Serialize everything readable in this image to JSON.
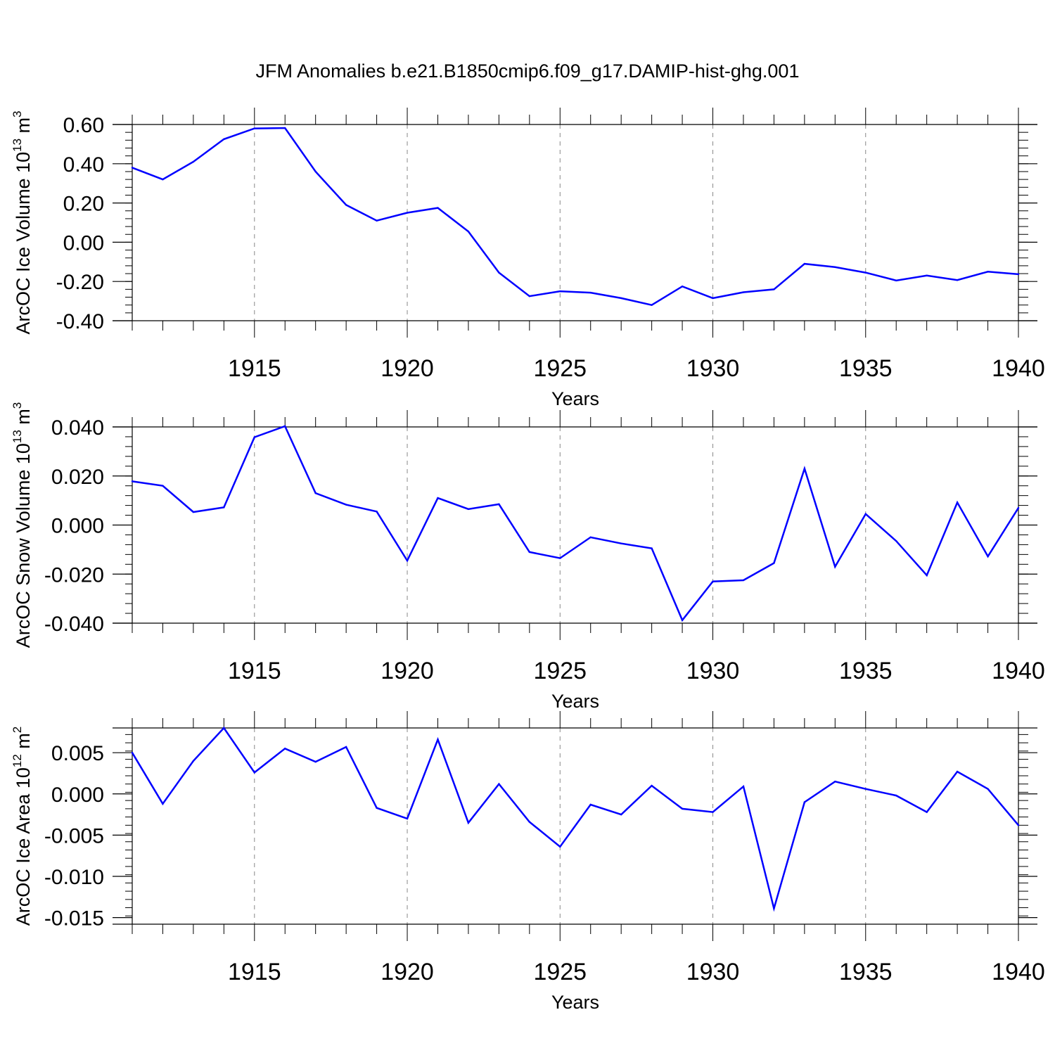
{
  "title": "JFM Anomalies b.e21.B1850cmip6.f09_g17.DAMIP-hist-ghg.001",
  "chart_data": [
    {
      "type": "line",
      "ylabel": "ArcOC Ice Volume 10",
      "ylabel_exp": "13",
      "ylabel_unit": " m",
      "ylabel_unit_exp": "3",
      "xlabel": "Years",
      "xlim": [
        1911,
        1940
      ],
      "ylim": [
        -0.4,
        0.6
      ],
      "yticks": [
        -0.4,
        -0.2,
        0.0,
        0.2,
        0.4,
        0.6
      ],
      "ytick_labels": [
        "-0.40",
        "-0.20",
        "0.00",
        "0.20",
        "0.40",
        "0.60"
      ],
      "xticks": [
        1915,
        1920,
        1925,
        1930,
        1935,
        1940
      ],
      "xtick_labels": [
        "1915",
        "1920",
        "1925",
        "1930",
        "1935",
        "1940"
      ],
      "line_color": "#0000ff",
      "x": [
        1911,
        1912,
        1913,
        1914,
        1915,
        1916,
        1917,
        1918,
        1919,
        1920,
        1921,
        1922,
        1923,
        1924,
        1925,
        1926,
        1927,
        1928,
        1929,
        1930,
        1931,
        1932,
        1933,
        1934,
        1935,
        1936,
        1937,
        1938,
        1939,
        1940
      ],
      "values": [
        0.38,
        0.32,
        0.41,
        0.525,
        0.58,
        0.582,
        0.36,
        0.19,
        0.11,
        0.15,
        0.175,
        0.055,
        -0.155,
        -0.275,
        -0.25,
        -0.257,
        -0.285,
        -0.32,
        -0.225,
        -0.285,
        -0.255,
        -0.24,
        -0.11,
        -0.127,
        -0.155,
        -0.195,
        -0.17,
        -0.193,
        -0.15,
        -0.163
      ]
    },
    {
      "type": "line",
      "ylabel": "ArcOC Snow Volume 10",
      "ylabel_exp": "13",
      "ylabel_unit": " m",
      "ylabel_unit_exp": "3",
      "xlabel": "Years",
      "xlim": [
        1911,
        1940
      ],
      "ylim": [
        -0.04,
        0.04
      ],
      "yticks": [
        -0.04,
        -0.02,
        0.0,
        0.02,
        0.04
      ],
      "ytick_labels": [
        "-0.040",
        "-0.020",
        "0.000",
        "0.020",
        "0.040"
      ],
      "xticks": [
        1915,
        1920,
        1925,
        1930,
        1935,
        1940
      ],
      "xtick_labels": [
        "1915",
        "1920",
        "1925",
        "1930",
        "1935",
        "1940"
      ],
      "line_color": "#0000ff",
      "x": [
        1911,
        1912,
        1913,
        1914,
        1915,
        1916,
        1917,
        1918,
        1919,
        1920,
        1921,
        1922,
        1923,
        1924,
        1925,
        1926,
        1927,
        1928,
        1929,
        1930,
        1931,
        1932,
        1933,
        1934,
        1935,
        1936,
        1937,
        1938,
        1939,
        1940
      ],
      "values": [
        0.0178,
        0.016,
        0.0053,
        0.0072,
        0.0358,
        0.0403,
        0.013,
        0.0083,
        0.0055,
        -0.0145,
        0.011,
        0.0065,
        0.0085,
        -0.011,
        -0.0135,
        -0.005,
        -0.0075,
        -0.0095,
        -0.0388,
        -0.023,
        -0.0225,
        -0.0155,
        0.023,
        -0.017,
        0.0045,
        -0.0065,
        -0.0205,
        0.0092,
        -0.0128,
        0.007
      ]
    },
    {
      "type": "line",
      "ylabel": "ArcOC Ice Area 10",
      "ylabel_exp": "12",
      "ylabel_unit": " m",
      "ylabel_unit_exp": "2",
      "xlabel": "Years",
      "xlim": [
        1911,
        1940
      ],
      "ylim": [
        -0.0158,
        0.008
      ],
      "yticks": [
        -0.015,
        -0.01,
        -0.005,
        0.0,
        0.005
      ],
      "ytick_labels": [
        "-0.015",
        "-0.010",
        "-0.005",
        "0.000",
        "0.005"
      ],
      "xticks": [
        1915,
        1920,
        1925,
        1930,
        1935,
        1940
      ],
      "xtick_labels": [
        "1915",
        "1920",
        "1925",
        "1930",
        "1935",
        "1940"
      ],
      "line_color": "#0000ff",
      "x": [
        1911,
        1912,
        1913,
        1914,
        1915,
        1916,
        1917,
        1918,
        1919,
        1920,
        1921,
        1922,
        1923,
        1924,
        1925,
        1926,
        1927,
        1928,
        1929,
        1930,
        1931,
        1932,
        1933,
        1934,
        1935,
        1936,
        1937,
        1938,
        1939,
        1940
      ],
      "values": [
        0.005,
        -0.0012,
        0.004,
        0.008,
        0.0026,
        0.0055,
        0.0039,
        0.0057,
        -0.0017,
        -0.003,
        0.0066,
        -0.0035,
        0.0012,
        -0.0034,
        -0.0064,
        -0.0013,
        -0.0025,
        0.001,
        -0.0018,
        -0.0022,
        0.0009,
        -0.0139,
        -0.001,
        0.0015,
        0.0006,
        -0.0002,
        -0.0022,
        0.0027,
        0.0006,
        -0.0038
      ]
    }
  ]
}
